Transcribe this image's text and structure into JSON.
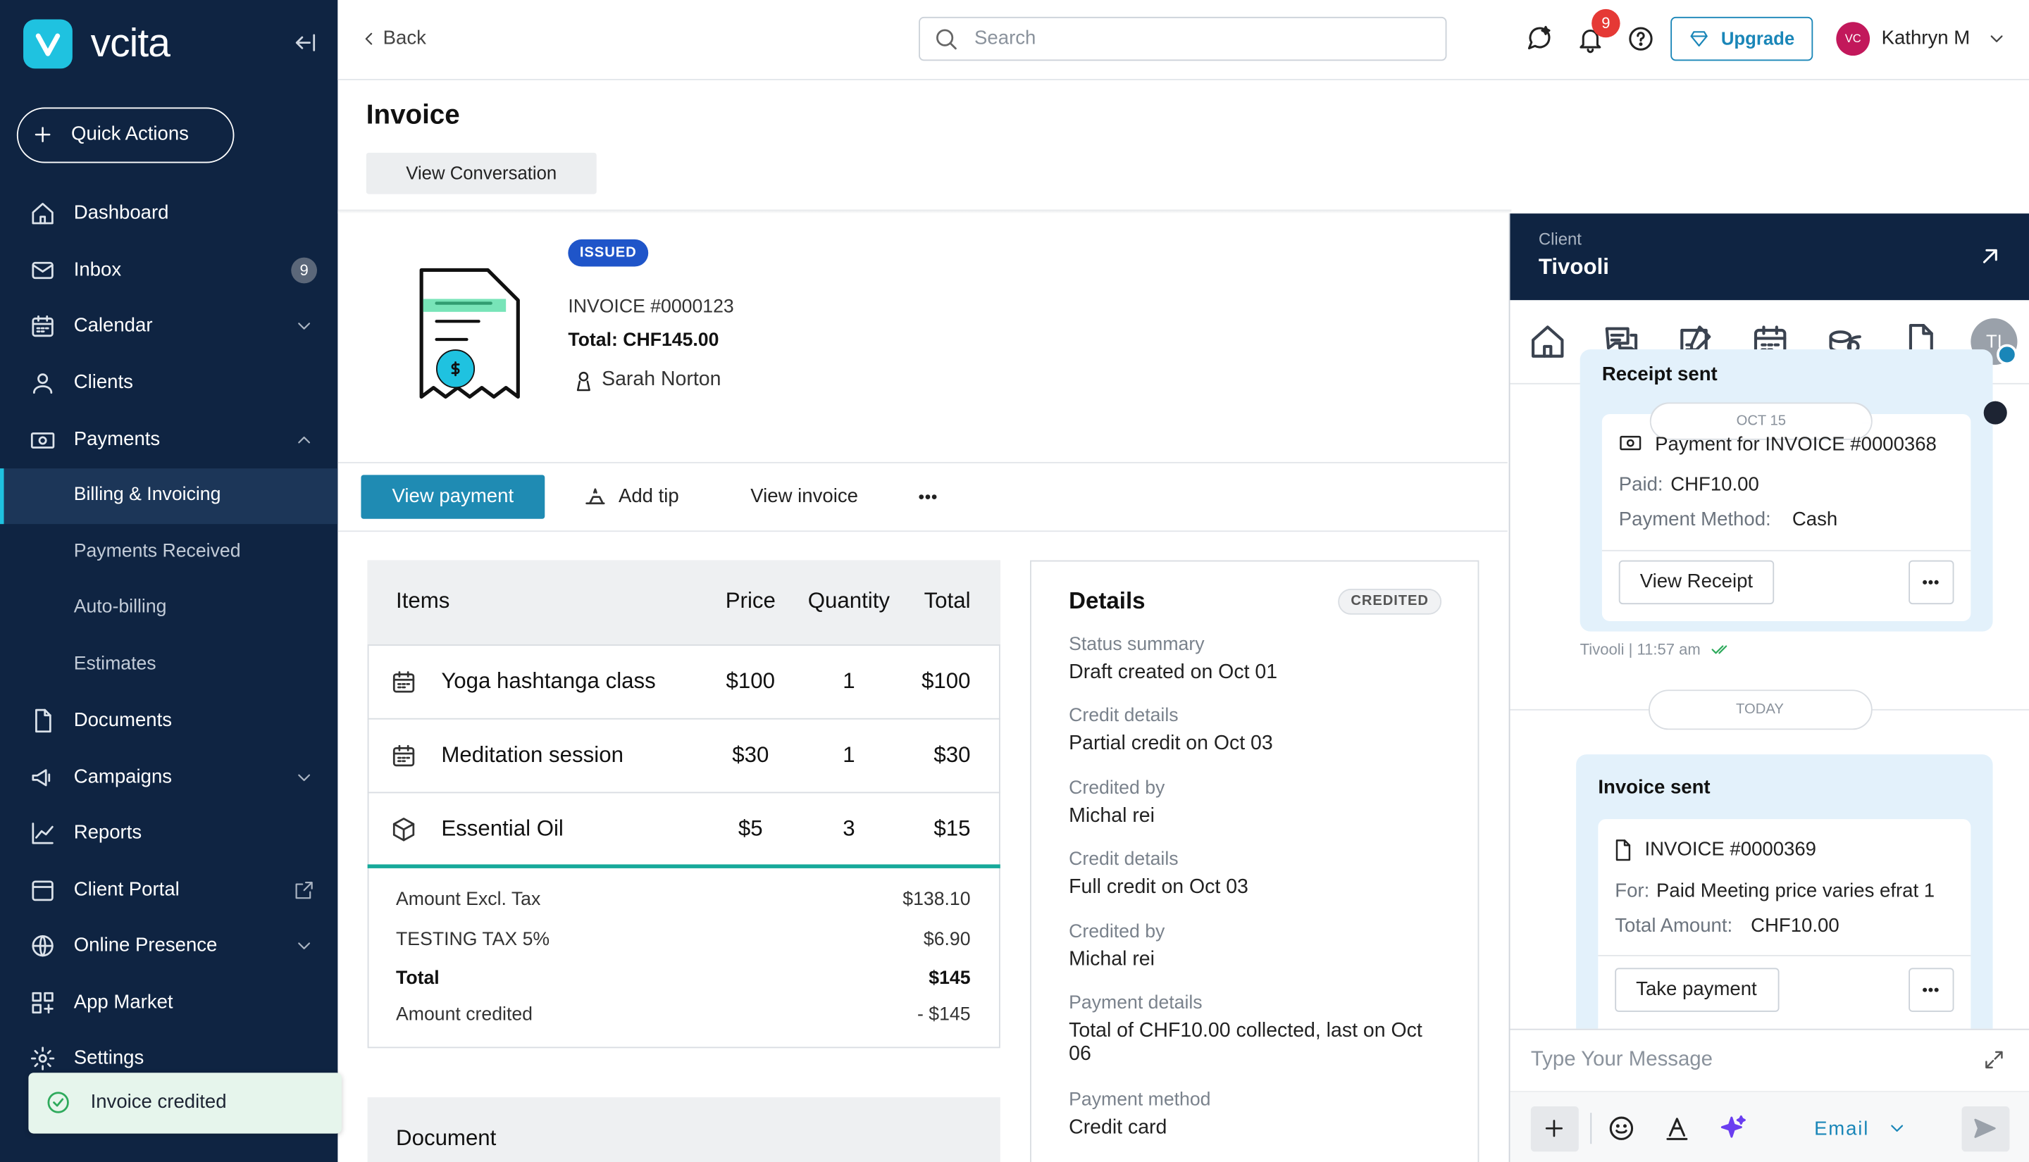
{
  "sidebar": {
    "brand": "vcita",
    "quick_actions": "Quick Actions",
    "nav": [
      {
        "label": "Dashboard"
      },
      {
        "label": "Inbox",
        "badge": "9"
      },
      {
        "label": "Calendar"
      },
      {
        "label": "Clients"
      },
      {
        "label": "Payments"
      },
      {
        "label": "Billing & Invoicing"
      },
      {
        "label": "Payments Received"
      },
      {
        "label": "Auto-billing"
      },
      {
        "label": "Estimates"
      },
      {
        "label": "Documents"
      },
      {
        "label": "Campaigns"
      },
      {
        "label": "Reports"
      },
      {
        "label": "Client Portal"
      },
      {
        "label": "Online Presence"
      },
      {
        "label": "App Market"
      },
      {
        "label": "Settings"
      }
    ],
    "toast": "Invoice credited"
  },
  "topbar": {
    "back": "Back",
    "search_placeholder": "Search",
    "notification_count": "9",
    "upgrade": "Upgrade",
    "avatar_initials": "VC",
    "user": "Kathryn M"
  },
  "header": {
    "title": "Invoice",
    "view_conversation": "View Conversation"
  },
  "invoice": {
    "status": "ISSUED",
    "number": "INVOICE #0000123",
    "total": "Total: CHF145.00",
    "client": "Sarah Norton"
  },
  "actions": [
    "View payment",
    "Add tip",
    "View invoice"
  ],
  "items_table": {
    "headers": [
      "Items",
      "Price",
      "Quantity",
      "Total"
    ],
    "rows": [
      [
        "Yoga hashtanga class",
        "$100",
        "1",
        "$100"
      ],
      [
        "Meditation session",
        "$30",
        "1",
        "$30"
      ],
      [
        "Essential Oil",
        "$5",
        "3",
        "$15"
      ]
    ],
    "summary": [
      {
        "label": "Amount Excl. Tax",
        "value": "$138.10"
      },
      {
        "label": "TESTING TAX 5%",
        "value": "$6.90"
      },
      {
        "label": "Total",
        "value": "$145"
      },
      {
        "label": "Amount credited",
        "value": "- $145"
      }
    ]
  },
  "document": {
    "title": "Document"
  },
  "details": {
    "title": "Details",
    "badge": "CREDITED",
    "fields": [
      {
        "label": "Status summary",
        "value": "Draft created on Oct 01"
      },
      {
        "label": "Credit details",
        "value": "Partial credit on Oct 03"
      },
      {
        "label": "Credited by",
        "value": "Michal rei"
      },
      {
        "label": "Credit details",
        "value": "Full credit on Oct 03"
      },
      {
        "label": "Credited by",
        "value": "Michal rei"
      },
      {
        "label": "Payment details",
        "value": "Total of CHF10.00 collected, last on Oct 06"
      },
      {
        "label": "Payment method",
        "value": "Credit card"
      }
    ]
  },
  "client_panel": {
    "label": "Client",
    "name": "Tivooli",
    "avatar": "TI",
    "messages": [
      {
        "title": "Receipt sent",
        "date": "OCT 15",
        "subject": "Payment for INVOICE #0000368",
        "paid_label": "Paid:",
        "paid_value": "CHF10.00",
        "method_label": "Payment Method:",
        "method_value": "Cash",
        "button": "View Receipt",
        "meta": "Tivooli | 11:57 am"
      },
      {
        "date": "TODAY",
        "title": "Invoice sent",
        "subject": "INVOICE #0000369",
        "for_label": "For:",
        "for_value": "Paid Meeting price varies efrat 1",
        "amount_label": "Total Amount:",
        "amount_value": "CHF10.00",
        "button": "Take payment"
      }
    ],
    "composer_placeholder": "Type Your Message",
    "channel": "Email"
  }
}
